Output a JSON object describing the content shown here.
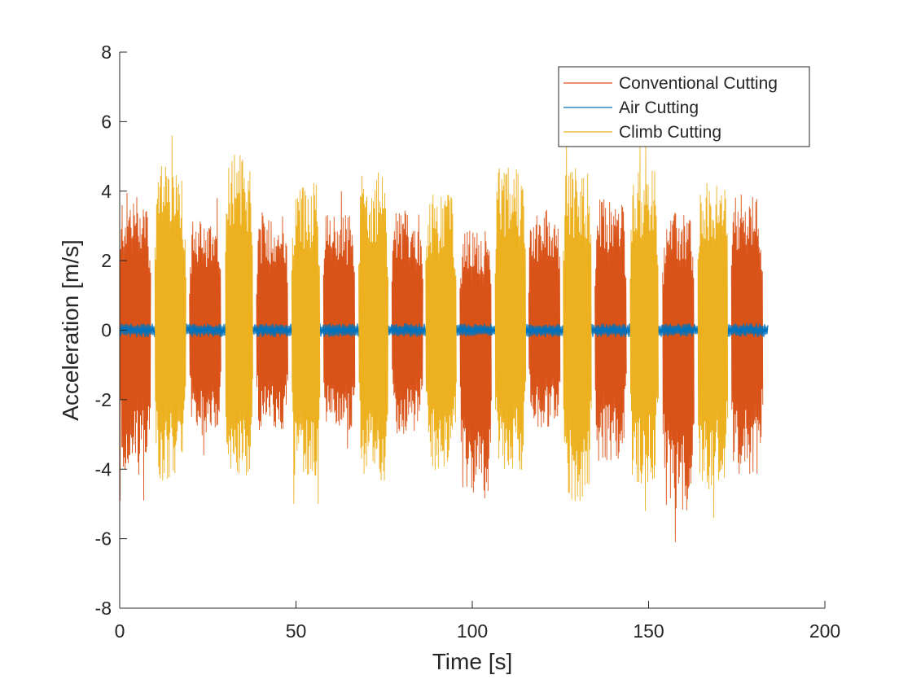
{
  "chart_data": {
    "type": "line",
    "title": "",
    "xlabel": "Time [s]",
    "ylabel": "Acceleration [m/s]",
    "xlim": [
      0,
      200
    ],
    "ylim": [
      -8,
      8
    ],
    "xticks": [
      "0",
      "50",
      "100",
      "150",
      "200"
    ],
    "yticks": [
      "8",
      "6",
      "4",
      "2",
      "0",
      "-2",
      "-4",
      "-6",
      "-8"
    ],
    "grid": false,
    "legend_position": "top-right",
    "series": [
      {
        "name": "Conventional Cutting",
        "color": "#D95319",
        "segments": [
          {
            "start": 0.0,
            "end": 8.8,
            "env_hi": 4.7,
            "env_lo": -4.9
          },
          {
            "start": 19.8,
            "end": 28.8,
            "env_hi": 3.8,
            "env_lo": -3.6
          },
          {
            "start": 38.8,
            "end": 47.8,
            "env_hi": 4.0,
            "env_lo": -3.4
          },
          {
            "start": 57.8,
            "end": 66.8,
            "env_hi": 4.0,
            "env_lo": -3.4
          },
          {
            "start": 77.2,
            "end": 86.0,
            "env_hi": 4.1,
            "env_lo": -3.6
          },
          {
            "start": 96.5,
            "end": 105.5,
            "env_hi": 3.4,
            "env_lo": -5.7
          },
          {
            "start": 116.0,
            "end": 125.0,
            "env_hi": 4.2,
            "env_lo": -3.4
          },
          {
            "start": 134.8,
            "end": 143.8,
            "env_hi": 4.5,
            "env_lo": -4.5
          },
          {
            "start": 154.0,
            "end": 163.0,
            "env_hi": 4.0,
            "env_lo": -6.1
          },
          {
            "start": 173.5,
            "end": 182.5,
            "env_hi": 4.6,
            "env_lo": -4.9
          }
        ]
      },
      {
        "name": "Air Cutting",
        "color": "#0072BD",
        "segments": [
          {
            "start": 0.0,
            "end": 184.0,
            "env_hi": 0.2,
            "env_lo": -0.2
          }
        ]
      },
      {
        "name": "Climb Cutting",
        "color": "#EDB120",
        "segments": [
          {
            "start": 10.0,
            "end": 18.8,
            "env_hi": 5.6,
            "env_lo": -5.1
          },
          {
            "start": 30.0,
            "end": 37.8,
            "env_hi": 6.0,
            "env_lo": -5.0
          },
          {
            "start": 48.8,
            "end": 56.8,
            "env_hi": 5.0,
            "env_lo": -5.0
          },
          {
            "start": 67.8,
            "end": 76.2,
            "env_hi": 5.4,
            "env_lo": -5.1
          },
          {
            "start": 86.8,
            "end": 95.5,
            "env_hi": 4.7,
            "env_lo": -4.8
          },
          {
            "start": 106.5,
            "end": 115.2,
            "env_hi": 5.6,
            "env_lo": -4.8
          },
          {
            "start": 125.8,
            "end": 133.8,
            "env_hi": 5.5,
            "env_lo": -6.0
          },
          {
            "start": 144.8,
            "end": 152.8,
            "env_hi": 5.4,
            "env_lo": -5.2
          },
          {
            "start": 164.0,
            "end": 172.5,
            "env_hi": 5.4,
            "env_lo": -5.4
          }
        ]
      }
    ]
  }
}
